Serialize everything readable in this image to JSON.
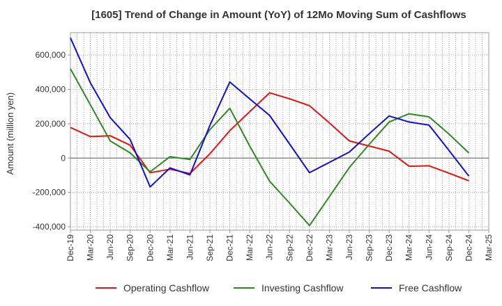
{
  "chart_data": {
    "type": "line",
    "title": "[1605]  Trend of Change in Amount (YoY) of 12Mo Moving Sum of Cashflows",
    "xlabel": "",
    "ylabel": "Amount (million yen)",
    "ylim": [
      -420000,
      730000
    ],
    "yticks": [
      -400000,
      -200000,
      0,
      200000,
      400000,
      600000
    ],
    "ytick_labels": [
      "-400,000",
      "-200,000",
      "0",
      "200,000",
      "400,000",
      "600,000"
    ],
    "categories": [
      "Dec-19",
      "Mar-20",
      "Jun-20",
      "Sep-20",
      "Dec-20",
      "Mar-21",
      "Jun-21",
      "Sep-21",
      "Dec-21",
      "Mar-22",
      "Jun-22",
      "Sep-22",
      "Dec-22",
      "Mar-23",
      "Jun-23",
      "Sep-23",
      "Dec-23",
      "Mar-24",
      "Jun-24",
      "Sep-24",
      "Dec-24",
      "Mar-25"
    ],
    "grid": true,
    "legend_position": "bottom",
    "series": [
      {
        "name": "Operating Cashflow",
        "color": "#e8120e",
        "values": [
          178000,
          125000,
          130000,
          75000,
          -85000,
          -65000,
          -90000,
          25000,
          160000,
          270000,
          380000,
          345000,
          305000,
          205000,
          100000,
          70000,
          40000,
          -48000,
          -45000,
          -88000,
          -132000,
          null
        ]
      },
      {
        "name": "Investing Cashflow",
        "color": "#2a8a1c",
        "values": [
          520000,
          310000,
          100000,
          30000,
          -80000,
          8000,
          -8000,
          165000,
          290000,
          70000,
          -135000,
          -262000,
          -393000,
          -225000,
          -55000,
          80000,
          210000,
          258000,
          240000,
          140000,
          30000,
          null
        ]
      },
      {
        "name": "Free Cashflow",
        "color": "#0e0ed8",
        "values": [
          700000,
          438000,
          235000,
          108000,
          -168000,
          -57000,
          -98000,
          190000,
          443000,
          345000,
          248000,
          82000,
          -85000,
          -25000,
          35000,
          142000,
          245000,
          210000,
          192000,
          45000,
          -105000,
          null
        ]
      }
    ]
  }
}
